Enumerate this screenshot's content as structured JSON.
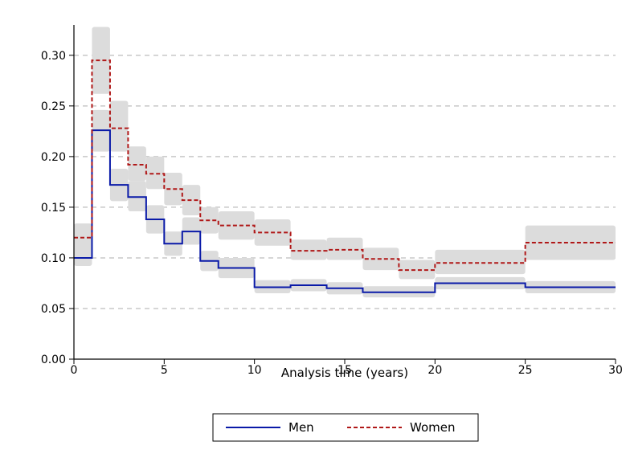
{
  "chart_data": {
    "type": "line",
    "title": "",
    "xlabel": "Analysis time (years)",
    "ylabel": "",
    "xlim": [
      0,
      30
    ],
    "ylim": [
      0,
      0.33
    ],
    "x_ticks": [
      0,
      5,
      10,
      15,
      20,
      25,
      30
    ],
    "x_tick_labels": [
      "0",
      "5",
      "10",
      "15",
      "20",
      "25",
      "30"
    ],
    "y_ticks": [
      0,
      0.05,
      0.1,
      0.15,
      0.2,
      0.25,
      0.3
    ],
    "y_tick_labels": [
      "0.00",
      "0.05",
      "0.10",
      "0.15",
      "0.20",
      "0.25",
      "0.30"
    ],
    "grid": "horizontal dashed",
    "legend_position": "bottom-center",
    "confidence_band_color": "#dcdcdc",
    "series": [
      {
        "name": "Men",
        "color": "#0a1aa8",
        "style": "solid",
        "x": [
          0,
          1,
          2,
          3,
          4,
          5,
          6,
          7,
          8,
          10,
          12,
          14,
          16,
          20,
          25,
          30
        ],
        "y": [
          0.1,
          0.226,
          0.172,
          0.16,
          0.138,
          0.114,
          0.126,
          0.097,
          0.09,
          0.071,
          0.073,
          0.07,
          0.066,
          0.075,
          0.071,
          0.071
        ],
        "lo": [
          0.092,
          0.205,
          0.156,
          0.146,
          0.124,
          0.102,
          0.113,
          0.087,
          0.08,
          0.065,
          0.067,
          0.064,
          0.061,
          0.069,
          0.065,
          0.065
        ],
        "hi": [
          0.11,
          0.246,
          0.188,
          0.176,
          0.152,
          0.126,
          0.14,
          0.107,
          0.1,
          0.078,
          0.079,
          0.076,
          0.072,
          0.081,
          0.077,
          0.077
        ]
      },
      {
        "name": "Women",
        "color": "#b01818",
        "style": "dashed",
        "x": [
          0,
          1,
          2,
          3,
          4,
          5,
          6,
          7,
          8,
          10,
          12,
          14,
          16,
          18,
          20,
          25,
          30
        ],
        "y": [
          0.12,
          0.295,
          0.228,
          0.192,
          0.183,
          0.168,
          0.157,
          0.137,
          0.132,
          0.125,
          0.107,
          0.108,
          0.099,
          0.088,
          0.095,
          0.115,
          0.115
        ],
        "lo": [
          0.108,
          0.262,
          0.205,
          0.176,
          0.168,
          0.152,
          0.142,
          0.124,
          0.118,
          0.112,
          0.098,
          0.098,
          0.088,
          0.079,
          0.084,
          0.098,
          0.098
        ],
        "hi": [
          0.134,
          0.328,
          0.255,
          0.21,
          0.2,
          0.184,
          0.172,
          0.15,
          0.146,
          0.138,
          0.118,
          0.12,
          0.11,
          0.098,
          0.108,
          0.132,
          0.132
        ]
      }
    ]
  }
}
